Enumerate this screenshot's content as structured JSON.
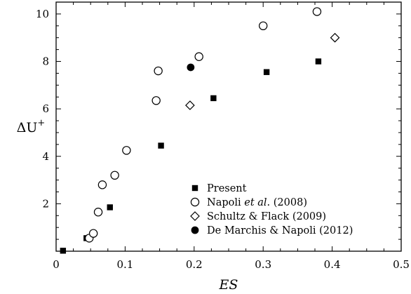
{
  "chart_data": {
    "type": "scatter",
    "xlabel": "ES",
    "ylabel_main": "ΔU",
    "ylabel_sup": "+",
    "xlim": [
      0,
      0.5
    ],
    "ylim": [
      0,
      10.5
    ],
    "xticks": [
      0,
      0.1,
      0.2,
      0.3,
      0.4,
      0.5
    ],
    "xtick_labels": [
      "0",
      "0.1",
      "0.2",
      "0.3",
      "0.4",
      "0.5"
    ],
    "yticks": [
      2,
      4,
      6,
      8,
      10
    ],
    "ytick_labels": [
      "2",
      "4",
      "6",
      "8",
      "10"
    ],
    "grid": false,
    "legend_position": "bottom-right",
    "series": [
      {
        "name": "Present",
        "legend": {
          "before": "Present",
          "italic": "",
          "after": ""
        },
        "marker": "square-filled",
        "points": [
          [
            0.01,
            0.02
          ],
          [
            0.044,
            0.55
          ],
          [
            0.078,
            1.85
          ],
          [
            0.152,
            4.45
          ],
          [
            0.228,
            6.45
          ],
          [
            0.305,
            7.55
          ],
          [
            0.38,
            8.0
          ]
        ]
      },
      {
        "name": "Napoli et al. (2008)",
        "legend": {
          "before": "Napoli ",
          "italic": "et al",
          "after": ". (2008)"
        },
        "marker": "circle-open",
        "points": [
          [
            0.048,
            0.55
          ],
          [
            0.054,
            0.75
          ],
          [
            0.061,
            1.65
          ],
          [
            0.067,
            2.8
          ],
          [
            0.085,
            3.2
          ],
          [
            0.102,
            4.25
          ],
          [
            0.145,
            6.35
          ],
          [
            0.148,
            7.6
          ],
          [
            0.207,
            8.2
          ],
          [
            0.3,
            9.5
          ],
          [
            0.378,
            10.1
          ]
        ]
      },
      {
        "name": "Schultz & Flack (2009)",
        "legend": {
          "before": "Schultz & Flack (2009)",
          "italic": "",
          "after": ""
        },
        "marker": "diamond-open",
        "points": [
          [
            0.194,
            6.15
          ],
          [
            0.404,
            9.0
          ]
        ]
      },
      {
        "name": "De Marchis & Napoli (2012)",
        "legend": {
          "before": "De Marchis & Napoli (2012)",
          "italic": "",
          "after": ""
        },
        "marker": "circle-filled",
        "points": [
          [
            0.195,
            7.75
          ]
        ]
      }
    ]
  }
}
